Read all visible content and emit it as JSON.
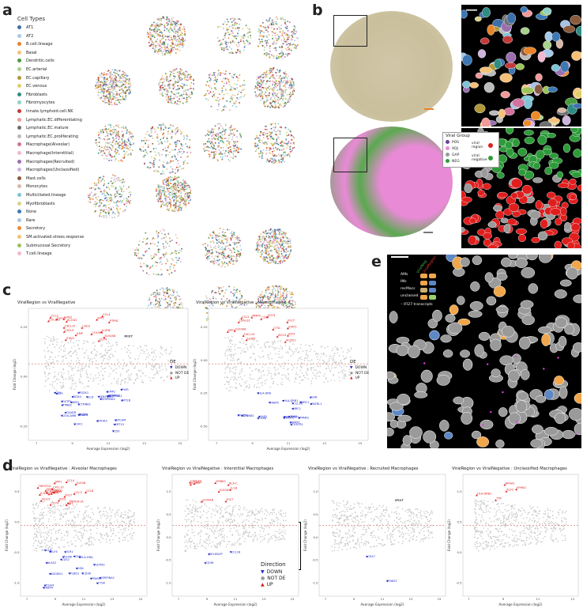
{
  "panels": {
    "a": "a",
    "b": "b",
    "c": "c",
    "d": "d",
    "e": "e"
  },
  "cell_types": {
    "title": "Cell Types",
    "items": [
      {
        "label": "AT1",
        "color": "#3f6fa8"
      },
      {
        "label": "AT2",
        "color": "#a9c9e8"
      },
      {
        "label": "B.cell.lineage",
        "color": "#e8832a"
      },
      {
        "label": "Basal",
        "color": "#f5c27a"
      },
      {
        "label": "Dendritic.cells",
        "color": "#4c9a3f"
      },
      {
        "label": "EC.arterial",
        "color": "#a8d08d"
      },
      {
        "label": "EC.capillary",
        "color": "#b0983a"
      },
      {
        "label": "EC.venous",
        "color": "#e0cf6a"
      },
      {
        "label": "Fibroblasts",
        "color": "#2f8c84"
      },
      {
        "label": "Fibromyocytes",
        "color": "#8fd0c6"
      },
      {
        "label": "Innate.lymphoid.cell.NK",
        "color": "#c43a3a"
      },
      {
        "label": "Lymphatic.EC.differentiating",
        "color": "#f19a9a"
      },
      {
        "label": "Lymphatic.EC.mature",
        "color": "#6e6e6e"
      },
      {
        "label": "Lymphatic.EC.proliferating",
        "color": "#bbbbbb"
      },
      {
        "label": "Macrophage(Alveolar)",
        "color": "#d2739e"
      },
      {
        "label": "Macrophage(Interstitial)",
        "color": "#f3b6cf"
      },
      {
        "label": "Macrophages(Recruited)",
        "color": "#9a6fb0"
      },
      {
        "label": "Macrophages(Unclassified)",
        "color": "#cdb4df"
      },
      {
        "label": "Mast.cells",
        "color": "#8a5a3c"
      },
      {
        "label": "Monocytes",
        "color": "#d7b8a6"
      },
      {
        "label": "Multiciliated.lineage",
        "color": "#7fc3d6"
      },
      {
        "label": "Myofibroblasts",
        "color": "#d8d38a"
      },
      {
        "label": "None",
        "color": "#3d78b5"
      },
      {
        "label": "Rare",
        "color": "#a7c4e4"
      },
      {
        "label": "Secretory",
        "color": "#ef8a2b"
      },
      {
        "label": "SM.activated.stress.response",
        "color": "#f4c17a"
      },
      {
        "label": "Submucosal.Secretory",
        "color": "#9dc35a"
      },
      {
        "label": "T.cell.lineage",
        "color": "#f4b6cf"
      }
    ]
  },
  "viral_group": {
    "title": "Viral Group",
    "items": [
      {
        "label": "POS",
        "color": "#6b3fa0"
      },
      {
        "label": "ADJ",
        "color": "#e98ad6"
      },
      {
        "label": "GAP",
        "color": "#9a9a9a"
      },
      {
        "label": "NEG",
        "color": "#2e9b3a"
      }
    ],
    "viral_region": "viral region",
    "viral_negative": "viral negative",
    "region_colors": {
      "viral": "#e01e1e",
      "negative": "#2e9b3a"
    }
  },
  "panel_e_legend": {
    "col1": "ViralNeg",
    "col2": "ViralRegion",
    "rows": [
      {
        "label": "AMs",
        "c1": "#f0a64a",
        "c2": "#f0a64a"
      },
      {
        "label": "IMs",
        "c1": "#f0a64a",
        "c2": "#5d87c5"
      },
      {
        "label": "recMacs",
        "c1": "#ccb070",
        "c2": "#5d87c5"
      },
      {
        "label": "unclassed",
        "c1": "#f0a64a",
        "c2": "#9bd06c"
      }
    ],
    "transcripts": "IFI27 transcripts",
    "transcript_color": "#e040e0"
  },
  "de_legend": {
    "title": "DE",
    "items": [
      {
        "label": "DOWN",
        "color": "#2028c8"
      },
      {
        "label": "NOT DE",
        "color": "#9a9a9a"
      },
      {
        "label": "UP",
        "color": "#e01e1e"
      }
    ]
  },
  "direction_legend": {
    "title": "Direction",
    "items": [
      {
        "label": "DOWN",
        "color": "#2028c8"
      },
      {
        "label": "NOT DE",
        "color": "#9a9a9a"
      },
      {
        "label": "UP",
        "color": "#e01e1e"
      }
    ]
  },
  "chart_data": [
    {
      "type": "scatter",
      "title": "ViralRegion vs ViralNegative",
      "xlabel": "Average Expression (log2)",
      "ylabel": "Fold Change (log2)",
      "xticks": [
        "7",
        "9",
        "11",
        "13",
        "15"
      ],
      "yticks": [
        "0.25",
        "0.00",
        "-0.25"
      ],
      "up": [
        "IL1RN",
        "S100A8",
        "CXCL10",
        "COL1A1",
        "SOD2",
        "ILMP",
        "COL3A1",
        "CCL4",
        "CXCL9",
        "SPP1",
        "CD74",
        "LAG3",
        "ACOD1",
        "PTPRC",
        "ISG15",
        "CCL2",
        "STAT1"
      ],
      "down": [
        "STMN1",
        "DDX4",
        "SERPINA3",
        "AKR1",
        "CAV1",
        "EMP1",
        "FABP4",
        "CXADR",
        "FZD6",
        "PDZK1",
        "SERPINB1",
        "CTNNB1",
        "SERPINA1",
        "CFH",
        "EPCAM",
        "CD9",
        "GSTP1",
        "EPHA3",
        "SCD",
        "TPBB2",
        "KRT19",
        "PIGR",
        "SLPI",
        "MT2B",
        "CEACAM6"
      ],
      "annot": [
        "IFI27"
      ]
    },
    {
      "type": "scatter",
      "title": "ViralRegion vs ViralNegative : Macrophages",
      "xlabel": "Average Expression (log2)",
      "ylabel": "Fold Change (log2)",
      "xticks": [
        "7",
        "9",
        "11",
        "13",
        "15"
      ],
      "yticks": [
        "0.25",
        "0.00",
        "-0.25",
        "-0.50"
      ],
      "up": [
        "CXCL10",
        "S100A8",
        "IFI27",
        "IL1RN",
        "CCL4",
        "CCL2",
        "SPP1",
        "CD74",
        "ISG15",
        "STAT1",
        "IDO1",
        "ACOD1",
        "LGALS3",
        "CTSL",
        "MMP9"
      ],
      "down": [
        "HLA-DRB1",
        "CD86",
        "CX3CR1",
        "NPRTC",
        "RATBL1",
        "SERPINA1",
        "PLBD1",
        "CTNNB1",
        "PDGFC",
        "HLA-DRA",
        "CCL18",
        "PPARG",
        "NRC1",
        "CD52",
        "GSN",
        "OLR1",
        "MRC1",
        "FABP5"
      ]
    },
    {
      "type": "scatter",
      "title": "ViralRegion vs ViralNegative : Alveolar Macrophages",
      "xlabel": "Average Expression (log2)",
      "ylabel": "Fold Change (log2)",
      "xticks": [
        "7",
        "9",
        "11",
        "13",
        "15"
      ],
      "yticks": [
        "0.5",
        "0.0",
        "-0.5",
        "-1.0"
      ],
      "up": [
        "TNFRSF1A",
        "CXCL10",
        "CCL4",
        "IFI27",
        "S100B",
        "CCL8",
        "NAMPT",
        "SPP1",
        "CD74",
        "ISG15",
        "IL1RN",
        "STAT1",
        "TNFSF10",
        "IDO1",
        "MX1",
        "CXCL11",
        "CCL2",
        "CCL3",
        "GBP1",
        "SOD2"
      ],
      "down": [
        "FABP4",
        "GSTM3",
        "CD9",
        "SERPINA1",
        "PLBD1",
        "KLF4",
        "CD52",
        "PPARG",
        "ITGAX",
        "TGFBI",
        "HLA-DRA",
        "CTSK",
        "ADGRD1",
        "GSN",
        "IL1B",
        "OLR1",
        "ALAS2",
        "CD36"
      ]
    },
    {
      "type": "scatter",
      "title": "ViralRegion vs ViralNegative : Interstitial Macrophages",
      "xlabel": "Average Expression (log2)",
      "ylabel": "Fold Change (log2)",
      "xticks": [
        "7",
        "9",
        "11",
        "13",
        "15"
      ],
      "yticks": [
        "1.0",
        "0.5",
        "0.0",
        "-0.5",
        "-1.0"
      ],
      "up": [
        "CXCL10",
        "SPINK1",
        "S100A8",
        "IL1B",
        "ICAM2",
        "IFI27",
        "S100A9",
        "CCL2",
        "HLA-C"
      ],
      "down": [
        "SELENOP",
        "CD36",
        "CCL18"
      ]
    },
    {
      "type": "scatter",
      "title": "ViralRegion vs ViralNegative : Recruited Macrophages",
      "xlabel": "Average Expression (log2)",
      "ylabel": "Fold Change (log2)",
      "xticks": [
        "7",
        "9",
        "11",
        "13",
        "15"
      ],
      "yticks": [
        "1.0",
        "0.5",
        "0.0",
        "-0.5",
        "-1.0"
      ],
      "up": [],
      "down": [
        "CD37",
        "TNKS2"
      ],
      "annot": [
        "IFI27"
      ]
    },
    {
      "type": "scatter",
      "title": "ViralRegion vs ViralNegative : Unclassified Macrophages",
      "xlabel": "Average Expression (log2)",
      "ylabel": "Fold Change (log2)",
      "xticks": [
        "7",
        "9",
        "11",
        "13"
      ],
      "yticks": [
        "1.0",
        "0.5",
        "0.0",
        "-0.5"
      ],
      "up": [
        "EPHB2",
        "HLA-DRB1",
        "KLF2",
        "TTR",
        "NR4A1"
      ],
      "down": []
    }
  ]
}
